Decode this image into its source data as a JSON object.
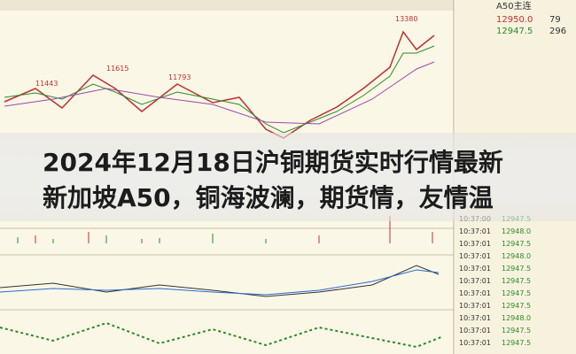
{
  "chart_annotations": [
    "11615",
    "11793",
    "11443",
    "13380"
  ],
  "title_lines": [
    "2024年12月18日沪铜期货实时行情最新",
    "新加坡A50，铜海波澜，期货情，友情温"
  ],
  "quote_panel": {
    "symbol": "A50主连",
    "bid": "12950.0",
    "bid_size": "79",
    "ask": "12947.5",
    "ask_size": "296",
    "trades": [
      {
        "time": "10:37:00",
        "price": "12947.5"
      },
      {
        "time": "10:37:01",
        "price": "12948.0"
      },
      {
        "time": "10:37:01",
        "price": "12947.5"
      },
      {
        "time": "10:37:01",
        "price": "12948.0"
      },
      {
        "time": "10:37:01",
        "price": "12947.5"
      },
      {
        "time": "10:37:01",
        "price": "12947.5"
      },
      {
        "time": "10:37:01",
        "price": "12947.5"
      },
      {
        "time": "10:37:01",
        "price": "12947.5"
      },
      {
        "time": "10:37:01",
        "price": "12948.0"
      },
      {
        "time": "10:37:01",
        "price": "12947.5"
      },
      {
        "time": "10:37:01",
        "price": "12947.5"
      }
    ]
  }
}
